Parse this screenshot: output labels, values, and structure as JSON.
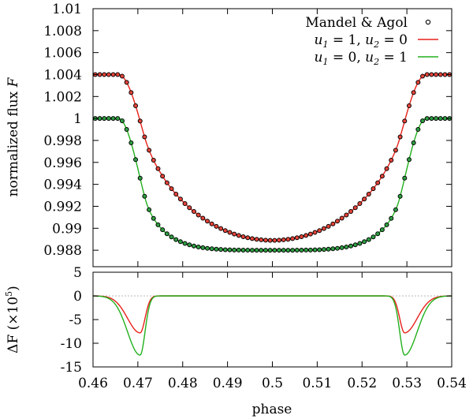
{
  "chart_data": [
    {
      "type": "line",
      "panel": "top",
      "title": "",
      "xlabel": "",
      "ylabel": "normalized flux F",
      "ylabel_parts": {
        "text": "normalized flux",
        "symbol": "F"
      },
      "xlim": [
        0.46,
        0.54
      ],
      "ylim": [
        0.9865,
        1.01
      ],
      "yticks": [
        0.988,
        0.99,
        0.992,
        0.994,
        0.996,
        0.998,
        1,
        1.002,
        1.004,
        1.006,
        1.008,
        1.01
      ],
      "ytick_labels": [
        "0.988",
        "0.99",
        "0.992",
        "0.994",
        "0.996",
        "0.998",
        "1",
        "1.002",
        "1.004",
        "1.006",
        "1.008",
        "1.01"
      ],
      "legend_position": "top-right",
      "series": [
        {
          "name": "Mandel & Agol",
          "style": "points",
          "color": "#000000",
          "fill_colors": [
            "#e8443a",
            "#2ea043"
          ],
          "x_start": 0.4605,
          "x_end": 0.5395,
          "x_step": 0.001
        },
        {
          "name": "u1 = 1, u2 = 0",
          "legend_parts": [
            "u",
            "1",
            " = 1, ",
            "u",
            "2",
            " = 0"
          ],
          "color": "#e8211a",
          "baseline": 1.004,
          "depth": 0.0151,
          "limb_darkening": [
            1,
            0
          ],
          "contact_phases": [
            0.4657,
            0.4725,
            0.5275,
            0.5343
          ]
        },
        {
          "name": "u1 = 0, u2 = 1",
          "legend_parts": [
            "u",
            "1",
            " = 0, ",
            "u",
            "2",
            " = 1"
          ],
          "color": "#22b01c",
          "baseline": 1.0,
          "depth": 0.012,
          "limb_darkening": [
            0,
            1
          ],
          "contact_phases": [
            0.4657,
            0.4725,
            0.5275,
            0.5343
          ]
        }
      ]
    },
    {
      "type": "line",
      "panel": "bottom",
      "title": "",
      "xlabel": "phase",
      "ylabel": "ΔF (×10^5)",
      "ylabel_parts": {
        "text": "ΔF (×10",
        "sup": "5",
        "close": ")"
      },
      "xlim": [
        0.46,
        0.54
      ],
      "ylim": [
        -15,
        5
      ],
      "xticks": [
        0.46,
        0.47,
        0.48,
        0.49,
        0.5,
        0.51,
        0.52,
        0.53,
        0.54
      ],
      "xtick_labels": [
        "0.46",
        "0.47",
        "0.48",
        "0.49",
        "0.5",
        "0.51",
        "0.52",
        "0.53",
        "0.54"
      ],
      "yticks": [
        -15,
        -10,
        -5,
        0,
        5
      ],
      "ytick_labels": [
        "-15",
        "-10",
        "-5",
        "0",
        "5"
      ],
      "zero_line": true,
      "series": [
        {
          "name": "u1 = 1, u2 = 0",
          "color": "#e8211a",
          "min_value": -7.8,
          "min_phases": [
            0.4705,
            0.5295
          ]
        },
        {
          "name": "u1 = 0, u2 = 1",
          "color": "#22b01c",
          "min_value": -12.5,
          "min_phases": [
            0.4705,
            0.5295
          ]
        }
      ]
    }
  ]
}
